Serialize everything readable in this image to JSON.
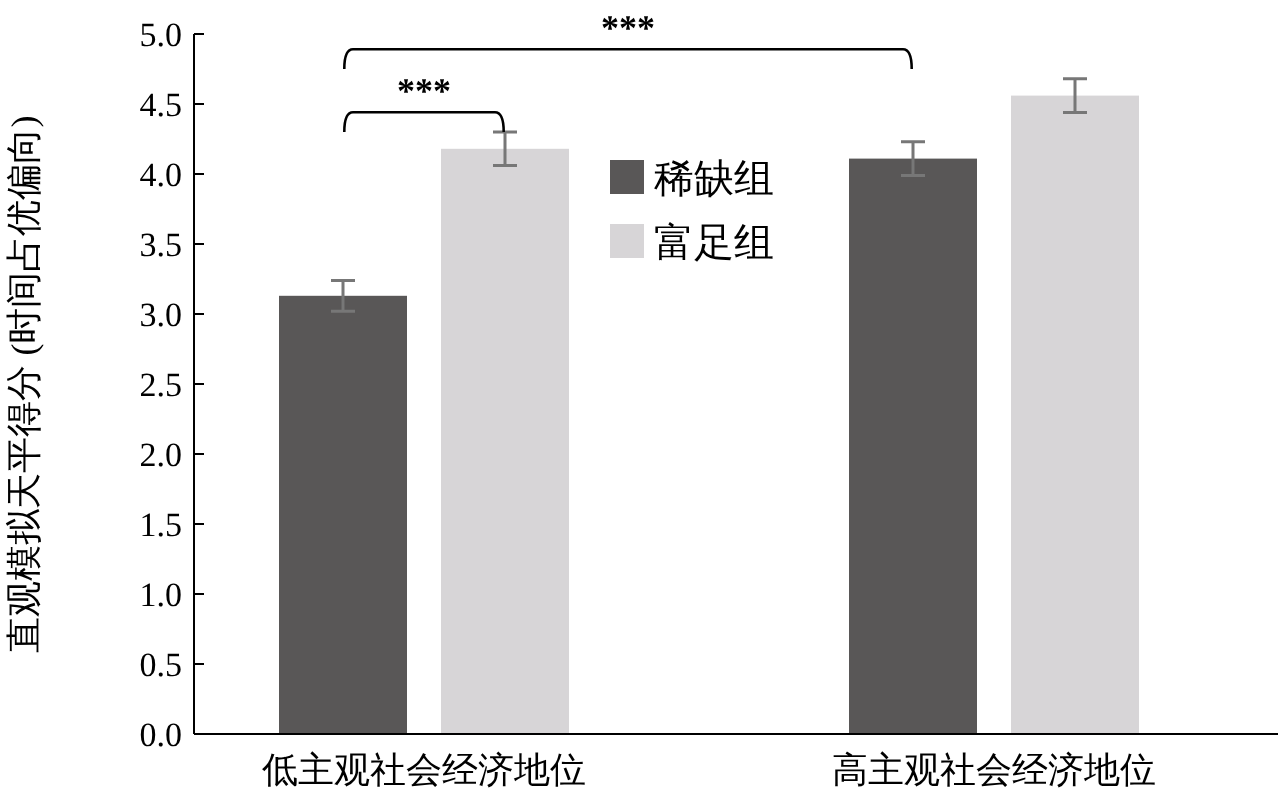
{
  "chart_data": {
    "type": "bar",
    "ylabel": "直观模拟天平得分 (时间占优偏向)",
    "categories": [
      "低主观社会经济地位",
      "高主观社会经济地位"
    ],
    "series": [
      {
        "name": "稀缺组",
        "color": "#595757",
        "values": [
          3.13,
          4.11
        ],
        "errors": [
          0.11,
          0.12
        ]
      },
      {
        "name": "富足组",
        "color": "#d7d5d7",
        "values": [
          4.18,
          4.56
        ],
        "errors": [
          0.12,
          0.12
        ]
      }
    ],
    "ylim": [
      0,
      5
    ],
    "yticks": [
      {
        "value": 0,
        "label": "0.0"
      },
      {
        "value": 0.5,
        "label": "0.5"
      },
      {
        "value": 1,
        "label": "1.0"
      },
      {
        "value": 1.5,
        "label": "1.5"
      },
      {
        "value": 2,
        "label": "2.0"
      },
      {
        "value": 2.5,
        "label": "2.5"
      },
      {
        "value": 3,
        "label": "3.0"
      },
      {
        "value": 3.5,
        "label": "3.5"
      },
      {
        "value": 4,
        "label": "4.0"
      },
      {
        "value": 4.5,
        "label": "4.5"
      },
      {
        "value": 5,
        "label": "5.0"
      }
    ],
    "legend": "top",
    "grid": false,
    "annotations": [
      "***",
      "***"
    ]
  }
}
